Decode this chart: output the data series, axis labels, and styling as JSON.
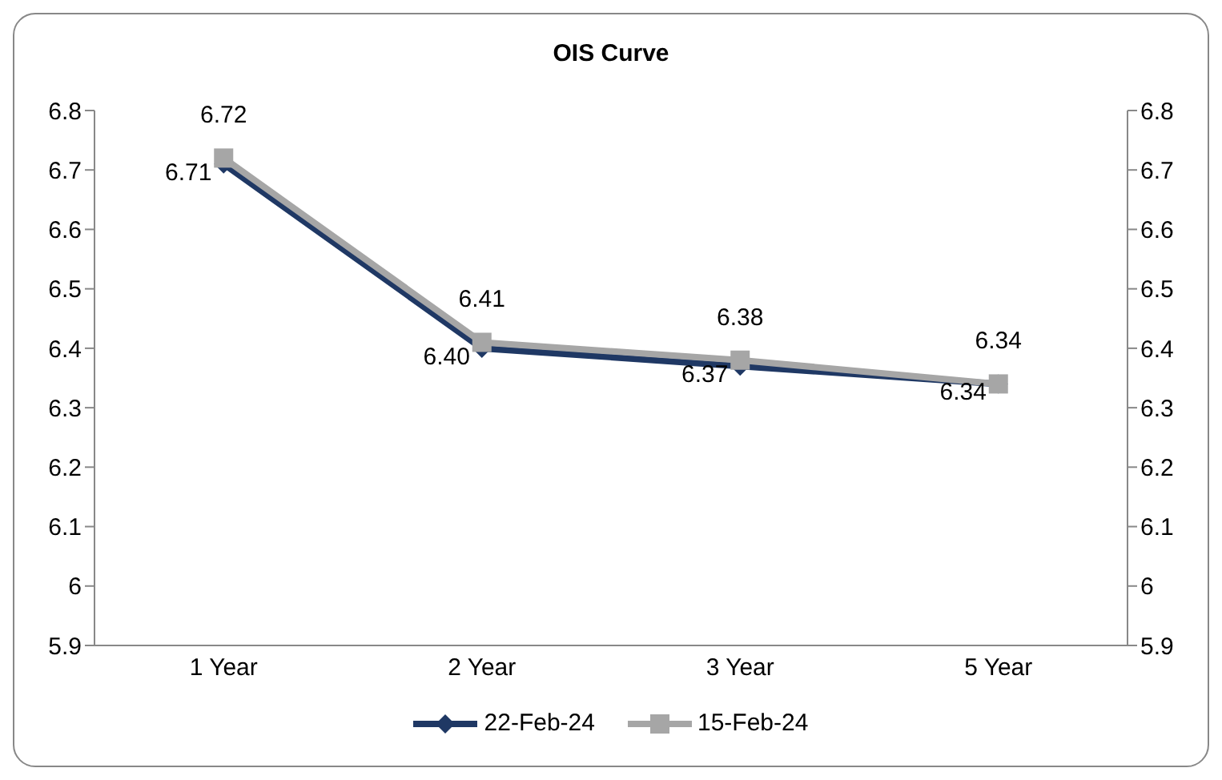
{
  "chart_data": {
    "type": "line",
    "title": "OIS Curve",
    "categories": [
      "1 Year",
      "2 Year",
      "3 Year",
      "5 Year"
    ],
    "series": [
      {
        "name": "22-Feb-24",
        "color": "#1f3864",
        "marker": "diamond",
        "values": [
          6.71,
          6.4,
          6.37,
          6.34
        ],
        "value_labels": [
          "6.71",
          "6.40",
          "6.37",
          "6.34"
        ]
      },
      {
        "name": "15-Feb-24",
        "color": "#a6a6a6",
        "marker": "square",
        "values": [
          6.72,
          6.41,
          6.38,
          6.34
        ],
        "value_labels": [
          "6.72",
          "6.41",
          "6.38",
          "6.34"
        ]
      }
    ],
    "ylim": [
      5.9,
      6.8
    ],
    "yticks": [
      5.9,
      6,
      6.1,
      6.2,
      6.3,
      6.4,
      6.5,
      6.6,
      6.7,
      6.8
    ],
    "y2lim": [
      5.9,
      6.8
    ],
    "y2ticks": [
      5.9,
      6,
      6.1,
      6.2,
      6.3,
      6.4,
      6.5,
      6.6,
      6.7,
      6.8
    ],
    "grid": false,
    "legend": "bottom"
  }
}
